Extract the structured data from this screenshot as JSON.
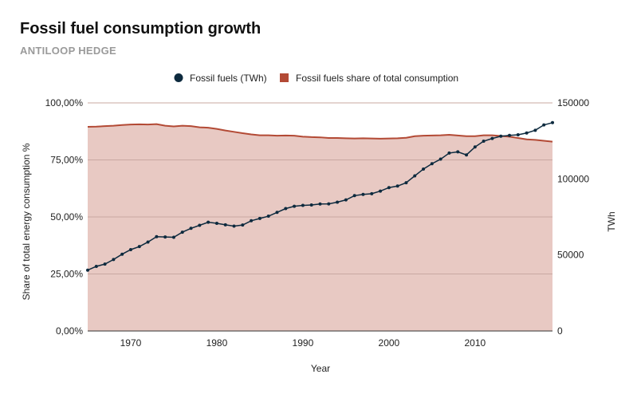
{
  "header": {
    "title": "Fossil fuel consumption growth",
    "subtitle": "ANTILOOP HEDGE"
  },
  "colors": {
    "fossil_twh": "#0d2a3e",
    "share_fill": "#e8c9c3",
    "share_line": "#b34a35",
    "grid": "#c9a8a2"
  },
  "chart_data": {
    "type": "line",
    "title": "Fossil fuel consumption growth",
    "subtitle": "ANTILOOP HEDGE",
    "xlabel": "Year",
    "ylabel_left": "Share of total energy consumption %",
    "ylabel_right": "TWh",
    "x_ticks": [
      "1970",
      "1980",
      "1990",
      "2000",
      "2010"
    ],
    "y_left_ticks": [
      "0,00%",
      "25,00%",
      "50,00%",
      "75,00%",
      "100,00%"
    ],
    "y_right_ticks": [
      "0",
      "50000",
      "100000",
      "150000"
    ],
    "xlim": [
      1965,
      2019
    ],
    "ylim_left": [
      0,
      100
    ],
    "ylim_right": [
      0,
      150000
    ],
    "legend_position": "top",
    "x": [
      1965,
      1966,
      1967,
      1968,
      1969,
      1970,
      1971,
      1972,
      1973,
      1974,
      1975,
      1976,
      1977,
      1978,
      1979,
      1980,
      1981,
      1982,
      1983,
      1984,
      1985,
      1986,
      1987,
      1988,
      1989,
      1990,
      1991,
      1992,
      1993,
      1994,
      1995,
      1996,
      1997,
      1998,
      1999,
      2000,
      2001,
      2002,
      2003,
      2004,
      2005,
      2006,
      2007,
      2008,
      2009,
      2010,
      2011,
      2012,
      2013,
      2014,
      2015,
      2016,
      2017,
      2018,
      2019
    ],
    "series": [
      {
        "name": "Fossil fuels (TWh)",
        "axis": "right",
        "style": "line-with-markers",
        "values": [
          40000,
          42500,
          44000,
          47000,
          50500,
          53500,
          55500,
          58500,
          62000,
          61800,
          61600,
          65000,
          67500,
          69500,
          71500,
          70800,
          69800,
          69000,
          69700,
          72500,
          74000,
          75500,
          78000,
          80500,
          82000,
          82600,
          82900,
          83500,
          83600,
          84700,
          86200,
          89000,
          89800,
          90300,
          92000,
          94300,
          95300,
          97500,
          102000,
          106500,
          110000,
          113000,
          117000,
          117800,
          115800,
          121000,
          124800,
          126600,
          128100,
          128600,
          129000,
          130200,
          132000,
          135500,
          137000
        ]
      },
      {
        "name": "Fossil fuels share of total consumption",
        "axis": "left",
        "style": "area",
        "values": [
          89.5,
          89.6,
          89.8,
          90.0,
          90.3,
          90.5,
          90.6,
          90.5,
          90.7,
          90.0,
          89.7,
          90.0,
          89.8,
          89.3,
          89.1,
          88.6,
          87.9,
          87.3,
          86.7,
          86.2,
          85.8,
          85.8,
          85.6,
          85.7,
          85.6,
          85.2,
          85.0,
          84.9,
          84.6,
          84.6,
          84.5,
          84.4,
          84.5,
          84.4,
          84.3,
          84.4,
          84.5,
          84.7,
          85.4,
          85.6,
          85.7,
          85.8,
          86.0,
          85.7,
          85.4,
          85.4,
          85.8,
          85.8,
          85.5,
          85.2,
          84.6,
          84.0,
          83.8,
          83.4,
          83.0
        ]
      }
    ]
  }
}
